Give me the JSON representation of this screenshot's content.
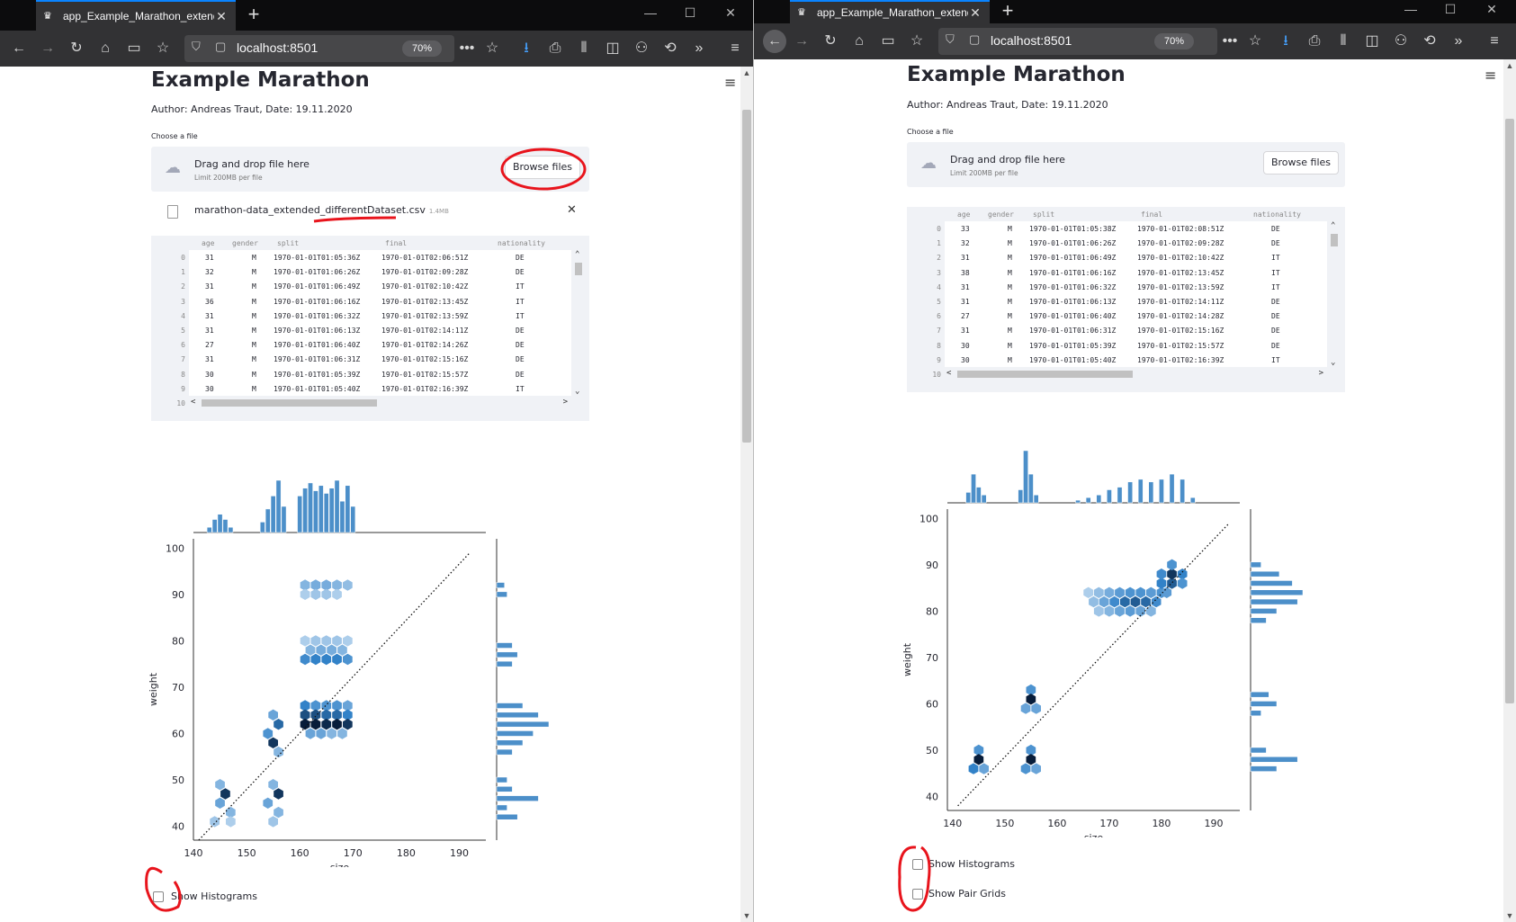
{
  "browser": {
    "tab_title": "app_Example_Marathon_extended",
    "url": "localhost:8501",
    "zoom": "70%"
  },
  "app": {
    "title": "Example Marathon",
    "author": "Author: Andreas Traut, Date: 19.11.2020",
    "choose_label": "Choose a file",
    "drop_text": "Drag and drop file here",
    "limit_text": "Limit 200MB per file",
    "browse_label": "Browse files",
    "file_name": "marathon-data_extended_differentDataset.csv",
    "file_size": "1.4MB",
    "show_histograms": "Show Histograms",
    "show_pair_grids": "Show Pair Grids"
  },
  "table": {
    "columns": [
      "age",
      "gender",
      "split",
      "final",
      "nationality"
    ],
    "left_rows": [
      [
        "0",
        "31",
        "M",
        "1970-01-01T01:05:36Z",
        "1970-01-01T02:06:51Z",
        "DE"
      ],
      [
        "1",
        "32",
        "M",
        "1970-01-01T01:06:26Z",
        "1970-01-01T02:09:28Z",
        "DE"
      ],
      [
        "2",
        "31",
        "M",
        "1970-01-01T01:06:49Z",
        "1970-01-01T02:10:42Z",
        "IT"
      ],
      [
        "3",
        "36",
        "M",
        "1970-01-01T01:06:16Z",
        "1970-01-01T02:13:45Z",
        "IT"
      ],
      [
        "4",
        "31",
        "M",
        "1970-01-01T01:06:32Z",
        "1970-01-01T02:13:59Z",
        "IT"
      ],
      [
        "5",
        "31",
        "M",
        "1970-01-01T01:06:13Z",
        "1970-01-01T02:14:11Z",
        "DE"
      ],
      [
        "6",
        "27",
        "M",
        "1970-01-01T01:06:40Z",
        "1970-01-01T02:14:26Z",
        "DE"
      ],
      [
        "7",
        "31",
        "M",
        "1970-01-01T01:06:31Z",
        "1970-01-01T02:15:16Z",
        "DE"
      ],
      [
        "8",
        "30",
        "M",
        "1970-01-01T01:05:39Z",
        "1970-01-01T02:15:57Z",
        "DE"
      ],
      [
        "9",
        "30",
        "M",
        "1970-01-01T01:05:40Z",
        "1970-01-01T02:16:39Z",
        "IT"
      ],
      [
        "10",
        "",
        "",
        "",
        "",
        ""
      ]
    ],
    "right_rows": [
      [
        "0",
        "33",
        "M",
        "1970-01-01T01:05:38Z",
        "1970-01-01T02:08:51Z",
        "DE"
      ],
      [
        "1",
        "32",
        "M",
        "1970-01-01T01:06:26Z",
        "1970-01-01T02:09:28Z",
        "DE"
      ],
      [
        "2",
        "31",
        "M",
        "1970-01-01T01:06:49Z",
        "1970-01-01T02:10:42Z",
        "IT"
      ],
      [
        "3",
        "38",
        "M",
        "1970-01-01T01:06:16Z",
        "1970-01-01T02:13:45Z",
        "IT"
      ],
      [
        "4",
        "31",
        "M",
        "1970-01-01T01:06:32Z",
        "1970-01-01T02:13:59Z",
        "IT"
      ],
      [
        "5",
        "31",
        "M",
        "1970-01-01T01:06:13Z",
        "1970-01-01T02:14:11Z",
        "DE"
      ],
      [
        "6",
        "27",
        "M",
        "1970-01-01T01:06:40Z",
        "1970-01-01T02:14:28Z",
        "DE"
      ],
      [
        "7",
        "31",
        "M",
        "1970-01-01T01:06:31Z",
        "1970-01-01T02:15:16Z",
        "DE"
      ],
      [
        "8",
        "30",
        "M",
        "1970-01-01T01:05:39Z",
        "1970-01-01T02:15:57Z",
        "DE"
      ],
      [
        "9",
        "30",
        "M",
        "1970-01-01T01:05:40Z",
        "1970-01-01T02:16:39Z",
        "IT"
      ],
      [
        "10",
        "",
        "",
        "",
        "",
        ""
      ]
    ]
  },
  "chart_data": [
    {
      "type": "scatter",
      "subtype": "hexbin jointplot with marginal histograms",
      "xlabel": "size",
      "ylabel": "weight",
      "xlim": [
        140,
        195
      ],
      "ylim": [
        37,
        102
      ],
      "xticks": [
        "140",
        "150",
        "160",
        "170",
        "180",
        "190"
      ],
      "yticks": [
        "40",
        "50",
        "60",
        "70",
        "80",
        "90",
        "100"
      ],
      "reference_line": {
        "style": "dotted",
        "from": [
          141,
          37
        ],
        "to": [
          192,
          99
        ]
      },
      "clusters": [
        {
          "x": [
            144,
            148
          ],
          "y": [
            41,
            51
          ]
        },
        {
          "x": [
            153,
            157
          ],
          "y": [
            41,
            51
          ]
        },
        {
          "x": [
            153,
            157
          ],
          "y": [
            55,
            66
          ]
        },
        {
          "x": [
            160,
            170
          ],
          "y": [
            58,
            67
          ]
        },
        {
          "x": [
            160,
            170
          ],
          "y": [
            74,
            81
          ]
        },
        {
          "x": [
            160,
            170
          ],
          "y": [
            89,
            93
          ]
        }
      ],
      "hex_cells": [
        [
          145,
          49,
          0.3
        ],
        [
          146,
          47,
          0.9
        ],
        [
          145,
          45,
          0.4
        ],
        [
          147,
          43,
          0.3
        ],
        [
          144,
          41,
          0.2
        ],
        [
          147,
          41,
          0.15
        ],
        [
          155,
          49,
          0.3
        ],
        [
          156,
          47,
          0.9
        ],
        [
          154,
          45,
          0.4
        ],
        [
          156,
          43,
          0.3
        ],
        [
          155,
          41,
          0.2
        ],
        [
          155,
          64,
          0.4
        ],
        [
          156,
          62,
          0.7
        ],
        [
          154,
          60,
          0.5
        ],
        [
          155,
          58,
          0.9
        ],
        [
          156,
          56,
          0.3
        ],
        [
          161,
          66,
          0.6
        ],
        [
          163,
          66,
          0.5
        ],
        [
          165,
          66,
          0.5
        ],
        [
          167,
          66,
          0.5
        ],
        [
          169,
          66,
          0.4
        ],
        [
          161,
          64,
          0.8
        ],
        [
          163,
          64,
          0.8
        ],
        [
          165,
          64,
          0.7
        ],
        [
          167,
          64,
          0.7
        ],
        [
          169,
          64,
          0.6
        ],
        [
          161,
          62,
          1.0
        ],
        [
          163,
          62,
          1.0
        ],
        [
          165,
          62,
          0.95
        ],
        [
          167,
          62,
          1.0
        ],
        [
          169,
          62,
          0.9
        ],
        [
          162,
          60,
          0.4
        ],
        [
          164,
          60,
          0.4
        ],
        [
          166,
          60,
          0.3
        ],
        [
          168,
          60,
          0.3
        ],
        [
          161,
          80,
          0.15
        ],
        [
          163,
          80,
          0.2
        ],
        [
          165,
          80,
          0.2
        ],
        [
          167,
          80,
          0.2
        ],
        [
          169,
          80,
          0.15
        ],
        [
          162,
          78,
          0.3
        ],
        [
          164,
          78,
          0.35
        ],
        [
          166,
          78,
          0.35
        ],
        [
          168,
          78,
          0.3
        ],
        [
          161,
          76,
          0.55
        ],
        [
          163,
          76,
          0.6
        ],
        [
          165,
          76,
          0.6
        ],
        [
          167,
          76,
          0.6
        ],
        [
          169,
          76,
          0.5
        ],
        [
          161,
          92,
          0.3
        ],
        [
          163,
          92,
          0.35
        ],
        [
          165,
          92,
          0.35
        ],
        [
          167,
          92,
          0.3
        ],
        [
          169,
          92,
          0.25
        ],
        [
          161,
          90,
          0.15
        ],
        [
          163,
          90,
          0.2
        ],
        [
          165,
          90,
          0.2
        ],
        [
          167,
          90,
          0.15
        ]
      ],
      "marg_x": [
        {
          "x": 143,
          "h": 0.1
        },
        {
          "x": 144,
          "h": 0.25
        },
        {
          "x": 145,
          "h": 0.35
        },
        {
          "x": 146,
          "h": 0.25
        },
        {
          "x": 147,
          "h": 0.1
        },
        {
          "x": 153,
          "h": 0.2
        },
        {
          "x": 154,
          "h": 0.45
        },
        {
          "x": 155,
          "h": 0.7
        },
        {
          "x": 156,
          "h": 1.0
        },
        {
          "x": 157,
          "h": 0.5
        },
        {
          "x": 160,
          "h": 0.7
        },
        {
          "x": 161,
          "h": 0.85
        },
        {
          "x": 162,
          "h": 0.95
        },
        {
          "x": 163,
          "h": 0.8
        },
        {
          "x": 164,
          "h": 0.9
        },
        {
          "x": 165,
          "h": 0.75
        },
        {
          "x": 166,
          "h": 0.85
        },
        {
          "x": 167,
          "h": 1.0
        },
        {
          "x": 168,
          "h": 0.6
        },
        {
          "x": 169,
          "h": 0.9
        },
        {
          "x": 170,
          "h": 0.5
        }
      ],
      "marg_y": [
        {
          "y": 42,
          "w": 0.4
        },
        {
          "y": 44,
          "w": 0.2
        },
        {
          "y": 46,
          "w": 0.8
        },
        {
          "y": 48,
          "w": 0.3
        },
        {
          "y": 50,
          "w": 0.2
        },
        {
          "y": 56,
          "w": 0.3
        },
        {
          "y": 58,
          "w": 0.5
        },
        {
          "y": 60,
          "w": 0.7
        },
        {
          "y": 62,
          "w": 1.0
        },
        {
          "y": 64,
          "w": 0.8
        },
        {
          "y": 66,
          "w": 0.5
        },
        {
          "y": 75,
          "w": 0.3
        },
        {
          "y": 77,
          "w": 0.4
        },
        {
          "y": 79,
          "w": 0.3
        },
        {
          "y": 90,
          "w": 0.2
        },
        {
          "y": 92,
          "w": 0.15
        }
      ]
    },
    {
      "type": "scatter",
      "subtype": "hexbin jointplot with marginal histograms",
      "xlabel": "size",
      "ylabel": "weight",
      "xlim": [
        139,
        195
      ],
      "ylim": [
        37,
        102
      ],
      "xticks": [
        "140",
        "150",
        "160",
        "170",
        "180",
        "190"
      ],
      "yticks": [
        "40",
        "50",
        "60",
        "70",
        "80",
        "90",
        "100"
      ],
      "reference_line": {
        "style": "dotted",
        "from": [
          141,
          38
        ],
        "to": [
          193,
          99
        ]
      },
      "clusters": [
        {
          "x": [
            143,
            147
          ],
          "y": [
            45,
            51
          ]
        },
        {
          "x": [
            153,
            157
          ],
          "y": [
            45,
            51
          ]
        },
        {
          "x": [
            153,
            157
          ],
          "y": [
            58,
            63
          ]
        },
        {
          "x": [
            164,
            186
          ],
          "y": [
            78,
            90
          ]
        }
      ],
      "hex_cells": [
        [
          145,
          50,
          0.5
        ],
        [
          145,
          48,
          1.0
        ],
        [
          144,
          46,
          0.6
        ],
        [
          146,
          46,
          0.4
        ],
        [
          155,
          50,
          0.5
        ],
        [
          155,
          48,
          1.0
        ],
        [
          154,
          46,
          0.5
        ],
        [
          156,
          46,
          0.4
        ],
        [
          155,
          63,
          0.5
        ],
        [
          155,
          61,
          1.0
        ],
        [
          154,
          59,
          0.4
        ],
        [
          156,
          59,
          0.4
        ],
        [
          166,
          84,
          0.15
        ],
        [
          168,
          84,
          0.25
        ],
        [
          170,
          84,
          0.35
        ],
        [
          172,
          84,
          0.45
        ],
        [
          174,
          84,
          0.5
        ],
        [
          176,
          84,
          0.5
        ],
        [
          178,
          84,
          0.45
        ],
        [
          167,
          82,
          0.25
        ],
        [
          169,
          82,
          0.4
        ],
        [
          171,
          82,
          0.55
        ],
        [
          173,
          82,
          0.7
        ],
        [
          175,
          82,
          0.75
        ],
        [
          177,
          82,
          0.7
        ],
        [
          179,
          82,
          0.55
        ],
        [
          168,
          80,
          0.2
        ],
        [
          170,
          80,
          0.3
        ],
        [
          172,
          80,
          0.4
        ],
        [
          174,
          80,
          0.45
        ],
        [
          176,
          80,
          0.4
        ],
        [
          178,
          80,
          0.3
        ],
        [
          180,
          84,
          0.5
        ],
        [
          180,
          86,
          0.6
        ],
        [
          182,
          86,
          0.75
        ],
        [
          182,
          88,
          0.9
        ],
        [
          184,
          88,
          0.6
        ],
        [
          182,
          90,
          0.5
        ],
        [
          180,
          88,
          0.55
        ],
        [
          184,
          86,
          0.5
        ],
        [
          181,
          84,
          0.45
        ]
      ],
      "marg_x": [
        {
          "x": 143,
          "h": 0.2
        },
        {
          "x": 144,
          "h": 0.55
        },
        {
          "x": 145,
          "h": 0.3
        },
        {
          "x": 146,
          "h": 0.15
        },
        {
          "x": 153,
          "h": 0.25
        },
        {
          "x": 154,
          "h": 1.0
        },
        {
          "x": 155,
          "h": 0.55
        },
        {
          "x": 156,
          "h": 0.15
        },
        {
          "x": 164,
          "h": 0.05
        },
        {
          "x": 166,
          "h": 0.1
        },
        {
          "x": 168,
          "h": 0.15
        },
        {
          "x": 170,
          "h": 0.25
        },
        {
          "x": 172,
          "h": 0.3
        },
        {
          "x": 174,
          "h": 0.4
        },
        {
          "x": 176,
          "h": 0.45
        },
        {
          "x": 178,
          "h": 0.4
        },
        {
          "x": 180,
          "h": 0.45
        },
        {
          "x": 182,
          "h": 0.55
        },
        {
          "x": 184,
          "h": 0.45
        },
        {
          "x": 186,
          "h": 0.1
        }
      ],
      "marg_y": [
        {
          "y": 46,
          "w": 0.5
        },
        {
          "y": 48,
          "w": 0.9
        },
        {
          "y": 50,
          "w": 0.3
        },
        {
          "y": 58,
          "w": 0.2
        },
        {
          "y": 60,
          "w": 0.5
        },
        {
          "y": 62,
          "w": 0.35
        },
        {
          "y": 78,
          "w": 0.3
        },
        {
          "y": 80,
          "w": 0.5
        },
        {
          "y": 82,
          "w": 0.9
        },
        {
          "y": 84,
          "w": 1.0
        },
        {
          "y": 86,
          "w": 0.8
        },
        {
          "y": 88,
          "w": 0.55
        },
        {
          "y": 90,
          "w": 0.2
        }
      ]
    }
  ],
  "colors": {
    "hist_bar": "#4c8fc9",
    "hex_light": "#d6e7f7",
    "hex_dark": "#081d3a",
    "annotation": "#e8141c"
  }
}
